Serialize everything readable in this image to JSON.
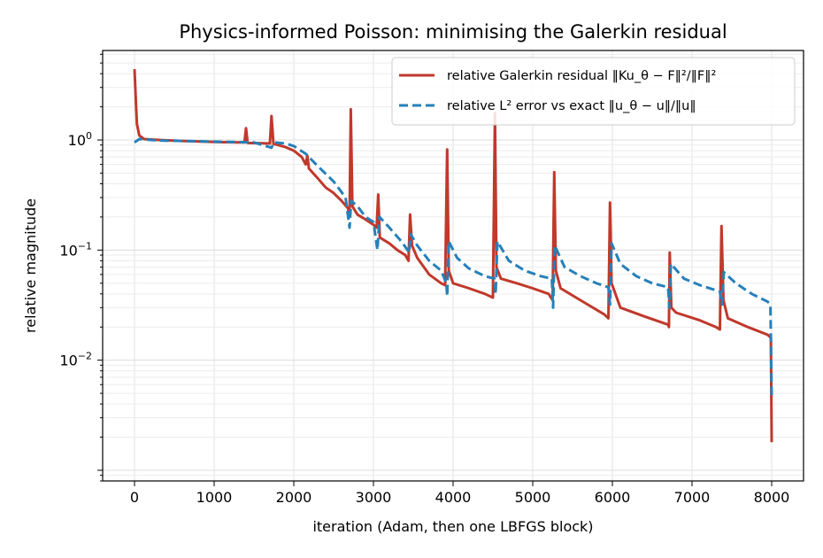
{
  "chart_data": {
    "type": "line",
    "title": "Physics-informed Poisson: minimising the Galerkin residual",
    "xlabel": "iteration  (Adam, then one LBFGS block)",
    "ylabel": "relative magnitude",
    "xlim": [
      -400,
      8400
    ],
    "ylim": [
      0.0008,
      6.5
    ],
    "yscale": "log",
    "grid": true,
    "legend_position": "top-right",
    "x_ticks": [
      0,
      1000,
      2000,
      3000,
      4000,
      5000,
      6000,
      7000,
      8000
    ],
    "y_ticks": [
      {
        "value": 1,
        "base": "10",
        "exp": "0"
      },
      {
        "value": 0.1,
        "base": "10",
        "exp": "−1"
      },
      {
        "value": 0.01,
        "base": "10",
        "exp": "−2"
      }
    ],
    "series": [
      {
        "name": "relative Galerkin residual  ‖Ku_θ − F‖²/‖F‖²",
        "color": "#c0392b",
        "style": "solid",
        "points": [
          [
            0,
            4.4
          ],
          [
            15,
            2.5
          ],
          [
            30,
            1.4
          ],
          [
            60,
            1.1
          ],
          [
            120,
            1.02
          ],
          [
            300,
            1.0
          ],
          [
            600,
            0.98
          ],
          [
            900,
            0.965
          ],
          [
            1100,
            0.955
          ],
          [
            1300,
            0.95
          ],
          [
            1380,
            0.95
          ],
          [
            1400,
            1.28
          ],
          [
            1420,
            0.94
          ],
          [
            1600,
            0.935
          ],
          [
            1700,
            0.93
          ],
          [
            1720,
            1.65
          ],
          [
            1745,
            0.92
          ],
          [
            1800,
            0.9
          ],
          [
            1900,
            0.86
          ],
          [
            2000,
            0.8
          ],
          [
            2100,
            0.7
          ],
          [
            2150,
            0.6
          ],
          [
            2170,
            0.72
          ],
          [
            2190,
            0.55
          ],
          [
            2300,
            0.45
          ],
          [
            2400,
            0.37
          ],
          [
            2500,
            0.33
          ],
          [
            2600,
            0.28
          ],
          [
            2680,
            0.24
          ],
          [
            2700,
            0.2
          ],
          [
            2715,
            1.9
          ],
          [
            2735,
            0.25
          ],
          [
            2800,
            0.21
          ],
          [
            2900,
            0.19
          ],
          [
            3000,
            0.17
          ],
          [
            3040,
            0.16
          ],
          [
            3060,
            0.32
          ],
          [
            3080,
            0.13
          ],
          [
            3200,
            0.115
          ],
          [
            3300,
            0.1
          ],
          [
            3400,
            0.09
          ],
          [
            3440,
            0.08
          ],
          [
            3460,
            0.21
          ],
          [
            3485,
            0.11
          ],
          [
            3550,
            0.085
          ],
          [
            3700,
            0.06
          ],
          [
            3850,
            0.05
          ],
          [
            3900,
            0.048
          ],
          [
            3925,
            0.82
          ],
          [
            3945,
            0.065
          ],
          [
            4000,
            0.05
          ],
          [
            4200,
            0.045
          ],
          [
            4400,
            0.04
          ],
          [
            4500,
            0.037
          ],
          [
            4525,
            1.75
          ],
          [
            4545,
            0.07
          ],
          [
            4600,
            0.055
          ],
          [
            4800,
            0.05
          ],
          [
            5000,
            0.045
          ],
          [
            5200,
            0.04
          ],
          [
            5250,
            0.035
          ],
          [
            5270,
            0.51
          ],
          [
            5290,
            0.065
          ],
          [
            5350,
            0.045
          ],
          [
            5600,
            0.035
          ],
          [
            5900,
            0.026
          ],
          [
            5950,
            0.024
          ],
          [
            5970,
            0.27
          ],
          [
            5990,
            0.05
          ],
          [
            6100,
            0.03
          ],
          [
            6400,
            0.025
          ],
          [
            6700,
            0.021
          ],
          [
            6710,
            0.02
          ],
          [
            6720,
            0.095
          ],
          [
            6740,
            0.03
          ],
          [
            6800,
            0.027
          ],
          [
            7100,
            0.023
          ],
          [
            7300,
            0.02
          ],
          [
            7350,
            0.019
          ],
          [
            7370,
            0.165
          ],
          [
            7395,
            0.035
          ],
          [
            7450,
            0.024
          ],
          [
            7700,
            0.02
          ],
          [
            7950,
            0.017
          ],
          [
            7990,
            0.016
          ],
          [
            8000,
            0.0018
          ]
        ]
      },
      {
        "name": "relative L² error vs exact  ‖u_θ − u‖/‖u‖",
        "color": "#2680ba",
        "style": "dashed",
        "points": [
          [
            0,
            0.95
          ],
          [
            60,
            1.02
          ],
          [
            300,
            0.99
          ],
          [
            600,
            0.98
          ],
          [
            900,
            0.97
          ],
          [
            1200,
            0.96
          ],
          [
            1500,
            0.95
          ],
          [
            1720,
            0.85
          ],
          [
            1750,
            0.95
          ],
          [
            1900,
            0.93
          ],
          [
            2000,
            0.88
          ],
          [
            2150,
            0.75
          ],
          [
            2300,
            0.58
          ],
          [
            2500,
            0.42
          ],
          [
            2650,
            0.3
          ],
          [
            2700,
            0.16
          ],
          [
            2720,
            0.28
          ],
          [
            2800,
            0.25
          ],
          [
            2900,
            0.2
          ],
          [
            3000,
            0.18
          ],
          [
            3050,
            0.1
          ],
          [
            3075,
            0.2
          ],
          [
            3200,
            0.16
          ],
          [
            3350,
            0.12
          ],
          [
            3450,
            0.095
          ],
          [
            3465,
            0.14
          ],
          [
            3550,
            0.11
          ],
          [
            3700,
            0.08
          ],
          [
            3850,
            0.065
          ],
          [
            3915,
            0.05
          ],
          [
            3925,
            0.038
          ],
          [
            3945,
            0.12
          ],
          [
            4050,
            0.085
          ],
          [
            4200,
            0.068
          ],
          [
            4400,
            0.058
          ],
          [
            4520,
            0.055
          ],
          [
            4535,
            0.04
          ],
          [
            4555,
            0.12
          ],
          [
            4700,
            0.08
          ],
          [
            4900,
            0.065
          ],
          [
            5100,
            0.058
          ],
          [
            5240,
            0.055
          ],
          [
            5255,
            0.03
          ],
          [
            5275,
            0.11
          ],
          [
            5400,
            0.07
          ],
          [
            5600,
            0.058
          ],
          [
            5800,
            0.05
          ],
          [
            5950,
            0.046
          ],
          [
            5970,
            0.032
          ],
          [
            5990,
            0.115
          ],
          [
            6100,
            0.075
          ],
          [
            6300,
            0.058
          ],
          [
            6500,
            0.05
          ],
          [
            6700,
            0.046
          ],
          [
            6715,
            0.03
          ],
          [
            6735,
            0.075
          ],
          [
            6900,
            0.055
          ],
          [
            7100,
            0.048
          ],
          [
            7350,
            0.042
          ],
          [
            7375,
            0.032
          ],
          [
            7400,
            0.063
          ],
          [
            7550,
            0.05
          ],
          [
            7750,
            0.04
          ],
          [
            7950,
            0.034
          ],
          [
            7985,
            0.032
          ],
          [
            8000,
            0.0047
          ]
        ]
      }
    ]
  }
}
